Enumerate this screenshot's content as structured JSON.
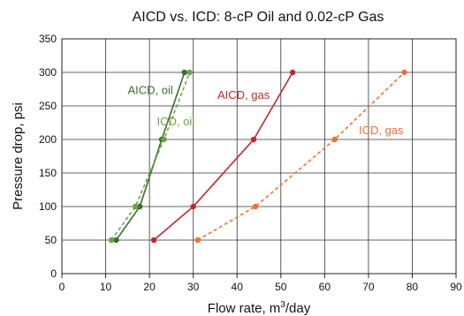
{
  "chart_data": {
    "type": "line",
    "title": "AICD vs. ICD: 8-cP Oil and 0.02-cP Gas",
    "xlabel": "Flow rate, m",
    "xlabel_sup": "3",
    "xlabel_suffix": "/day",
    "ylabel": "Pressure drop, psi",
    "xlim": [
      0,
      90
    ],
    "ylim": [
      0,
      350
    ],
    "xticks": [
      0,
      10,
      20,
      30,
      40,
      50,
      60,
      70,
      80,
      90
    ],
    "yticks": [
      0,
      50,
      100,
      150,
      200,
      250,
      300,
      350
    ],
    "grid": true,
    "series": [
      {
        "name": "AICD, oil",
        "color": "#3d6b2f",
        "dash": false,
        "x": [
          12.4,
          17.8,
          22.8,
          28.0
        ],
        "y": [
          50,
          100,
          200,
          300
        ]
      },
      {
        "name": "ICD, oil",
        "color": "#6ba33f",
        "dash": true,
        "x": [
          11.3,
          16.8,
          23.3,
          29.2
        ],
        "y": [
          50,
          100,
          200,
          300
        ]
      },
      {
        "name": "AICD, gas",
        "color": "#c0272d",
        "dash": false,
        "x": [
          21.0,
          30.0,
          43.8,
          52.7
        ],
        "y": [
          50,
          100,
          200,
          300
        ]
      },
      {
        "name": "ICD, gas",
        "color": "#f07030",
        "dash": true,
        "x": [
          31.0,
          44.2,
          62.3,
          78.2
        ],
        "y": [
          50,
          100,
          200,
          300
        ]
      }
    ],
    "annotations": [
      {
        "text": "AICD, oil",
        "x": 20.2,
        "y": 273,
        "color": "#3d6b2f"
      },
      {
        "text": "ICD, oil",
        "x": 26.0,
        "y": 226,
        "color": "#6ba33f"
      },
      {
        "text": "AICD, gas",
        "x": 41.5,
        "y": 266,
        "color": "#c0272d"
      },
      {
        "text": "ICD, gas",
        "x": 72.9,
        "y": 213,
        "color": "#f07030"
      }
    ]
  }
}
